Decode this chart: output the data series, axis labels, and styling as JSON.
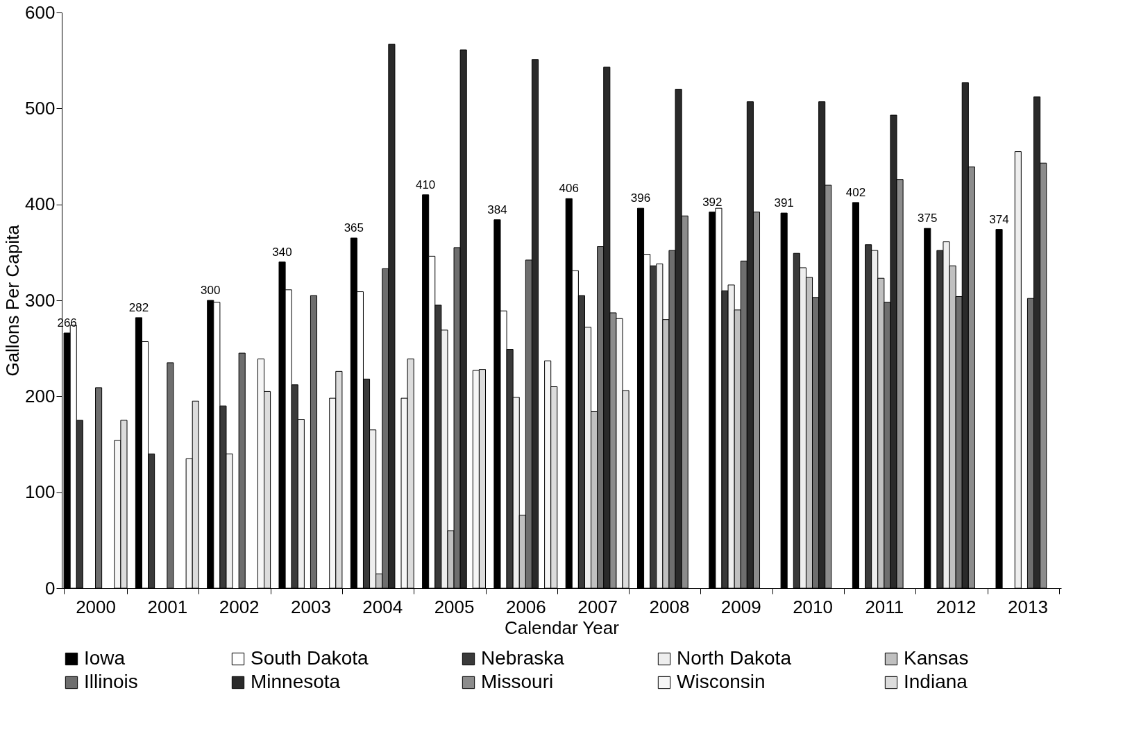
{
  "chart_data": {
    "type": "bar",
    "xlabel": "Calendar Year",
    "ylabel": "Gallons Per Capita",
    "categories": [
      "2000",
      "2001",
      "2002",
      "2003",
      "2004",
      "2005",
      "2006",
      "2007",
      "2008",
      "2009",
      "2010",
      "2011",
      "2012",
      "2013"
    ],
    "ylim": [
      0,
      600
    ],
    "yticks": [
      0,
      100,
      200,
      300,
      400,
      500,
      600
    ],
    "grid": false,
    "legend": "bottom",
    "series": [
      {
        "name": "Iowa",
        "color": "#000000",
        "values": [
          266,
          282,
          300,
          340,
          365,
          410,
          384,
          406,
          396,
          392,
          391,
          402,
          375,
          374
        ],
        "value_labels": [
          "266",
          "282",
          "300",
          "340",
          "365",
          "410",
          "384",
          "406",
          "396",
          "392",
          "391",
          "402",
          "375",
          "374"
        ]
      },
      {
        "name": "South Dakota",
        "color": "#ffffff",
        "values": [
          274,
          257,
          298,
          311,
          309,
          346,
          289,
          331,
          348,
          396,
          null,
          null,
          null,
          null
        ]
      },
      {
        "name": "Nebraska",
        "color": "#3a3a3a",
        "values": [
          175,
          140,
          190,
          212,
          218,
          295,
          249,
          305,
          336,
          310,
          349,
          358,
          352,
          null
        ]
      },
      {
        "name": "North Dakota",
        "color": "#eeeeee",
        "values": [
          null,
          null,
          140,
          176,
          165,
          269,
          199,
          272,
          338,
          316,
          334,
          352,
          361,
          455
        ]
      },
      {
        "name": "Kansas",
        "color": "#c0c0c0",
        "values": [
          null,
          null,
          null,
          null,
          15,
          60,
          76,
          184,
          280,
          290,
          324,
          323,
          336,
          null
        ]
      },
      {
        "name": "Illinois",
        "color": "#6e6e6e",
        "values": [
          209,
          235,
          245,
          305,
          333,
          355,
          342,
          356,
          352,
          341,
          303,
          298,
          304,
          302
        ]
      },
      {
        "name": "Minnesota",
        "color": "#2a2a2a",
        "values": [
          null,
          null,
          null,
          null,
          567,
          561,
          551,
          543,
          520,
          507,
          507,
          493,
          527,
          512
        ]
      },
      {
        "name": "Missouri",
        "color": "#8c8c8c",
        "values": [
          null,
          null,
          null,
          null,
          null,
          null,
          null,
          287,
          388,
          392,
          420,
          426,
          439,
          443
        ]
      },
      {
        "name": "Wisconsin",
        "color": "#f6f6f6",
        "values": [
          154,
          135,
          239,
          198,
          198,
          227,
          237,
          281,
          null,
          null,
          null,
          null,
          null,
          null
        ]
      },
      {
        "name": "Indiana",
        "color": "#dcdcdc",
        "values": [
          175,
          195,
          205,
          226,
          239,
          228,
          210,
          206,
          null,
          null,
          null,
          null,
          null,
          null
        ]
      }
    ]
  }
}
